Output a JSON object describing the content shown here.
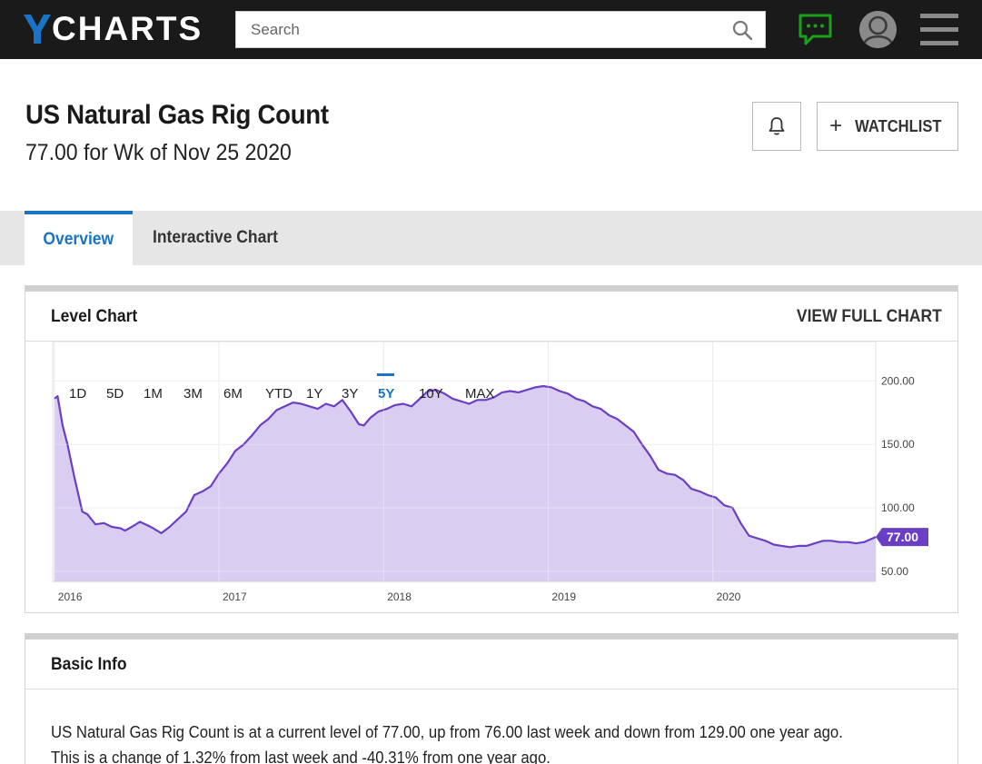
{
  "app": {
    "logo_text": "CHARTS",
    "logo_mark": "Y",
    "brand_color": "#1a73c5"
  },
  "search": {
    "placeholder": "Search",
    "icon": "search-icon"
  },
  "nav": {
    "chat_icon": "chat-icon",
    "chat_color": "#1aa01a",
    "avatar": "avatar",
    "menu_icon": "menu-icon"
  },
  "header": {
    "title": "US Natural Gas Rig Count",
    "subtitle": "77.00 for Wk of Nov 25 2020",
    "bell_icon": "bell-icon",
    "watchlist_label": "WATCHLIST"
  },
  "tabs": [
    {
      "label": "Overview",
      "active": true
    },
    {
      "label": "Interactive Chart",
      "active": false
    }
  ],
  "level_chart": {
    "title": "Level Chart",
    "view_full_label": "VIEW FULL CHART",
    "ranges": [
      "1D",
      "5D",
      "1M",
      "3M",
      "6M",
      "YTD",
      "1Y",
      "3Y",
      "5Y",
      "10Y",
      "MAX"
    ],
    "active_range": "5Y",
    "current_label": "77.00",
    "line_color": "#6a3fc4",
    "fill_color": "#d9cdf2"
  },
  "chart_data": {
    "type": "area",
    "title": "",
    "xlabel": "",
    "ylabel": "",
    "x_ticks": [
      "2016",
      "2017",
      "2018",
      "2019",
      "2020"
    ],
    "y_ticks": [
      50,
      100,
      150,
      200
    ],
    "y_tick_labels": [
      "50.00",
      "100.00",
      "150.00",
      "200.00"
    ],
    "ylim": [
      42,
      206
    ],
    "xlim": [
      2015.99,
      2020.99
    ],
    "grid": true,
    "series": [
      {
        "x": [
          2016.0,
          2016.02,
          2016.05,
          2016.08,
          2016.12,
          2016.17,
          2016.2,
          2016.25,
          2016.3,
          2016.35,
          2016.4,
          2016.43,
          2016.47,
          2016.52,
          2016.57,
          2016.6,
          2016.65,
          2016.7,
          2016.75,
          2016.8,
          2016.85,
          2016.9,
          2016.95,
          2017.0,
          2017.05,
          2017.1,
          2017.15,
          2017.2,
          2017.25,
          2017.3,
          2017.35,
          2017.4,
          2017.45,
          2017.5,
          2017.55,
          2017.6,
          2017.65,
          2017.7,
          2017.75,
          2017.8,
          2017.85,
          2017.88,
          2017.92,
          2017.97,
          2018.02,
          2018.07,
          2018.12,
          2018.17,
          2018.22,
          2018.27,
          2018.32,
          2018.37,
          2018.42,
          2018.47,
          2018.52,
          2018.57,
          2018.62,
          2018.67,
          2018.72,
          2018.77,
          2018.82,
          2018.87,
          2018.92,
          2018.97,
          2019.02,
          2019.07,
          2019.12,
          2019.17,
          2019.22,
          2019.27,
          2019.32,
          2019.37,
          2019.42,
          2019.47,
          2019.52,
          2019.57,
          2019.62,
          2019.67,
          2019.72,
          2019.77,
          2019.82,
          2019.87,
          2019.92,
          2019.97,
          2020.02,
          2020.07,
          2020.12,
          2020.17,
          2020.22,
          2020.27,
          2020.32,
          2020.37,
          2020.42,
          2020.47,
          2020.52,
          2020.57,
          2020.62,
          2020.67,
          2020.72,
          2020.77,
          2020.82,
          2020.87,
          2020.92,
          2020.99
        ],
        "values": [
          186,
          188,
          165,
          150,
          125,
          97,
          95,
          87,
          88,
          85,
          84,
          82,
          85,
          89,
          86,
          84,
          80,
          85,
          91,
          97,
          110,
          113,
          117,
          127,
          135,
          145,
          150,
          157,
          165,
          170,
          177,
          180,
          183,
          182,
          180,
          178,
          182,
          180,
          185,
          176,
          166,
          165,
          171,
          176,
          178,
          181,
          182,
          180,
          186,
          192,
          193,
          190,
          186,
          184,
          182,
          185,
          185,
          187,
          191,
          192,
          191,
          193,
          195,
          196,
          195,
          192,
          190,
          186,
          184,
          180,
          178,
          173,
          170,
          165,
          160,
          150,
          141,
          130,
          127,
          126,
          122,
          115,
          113,
          110,
          108,
          102,
          100,
          88,
          78,
          76,
          74,
          71,
          70,
          69,
          70,
          70,
          72,
          74,
          74,
          73,
          73,
          72,
          73,
          77
        ]
      }
    ]
  },
  "basic_info": {
    "title": "Basic Info",
    "line1": "US Natural Gas Rig Count is at a current level of 77.00, up from 76.00 last week and down from 129.00 one year ago.",
    "line2": "This is a change of 1.32% from last week and -40.31% from one year ago."
  }
}
